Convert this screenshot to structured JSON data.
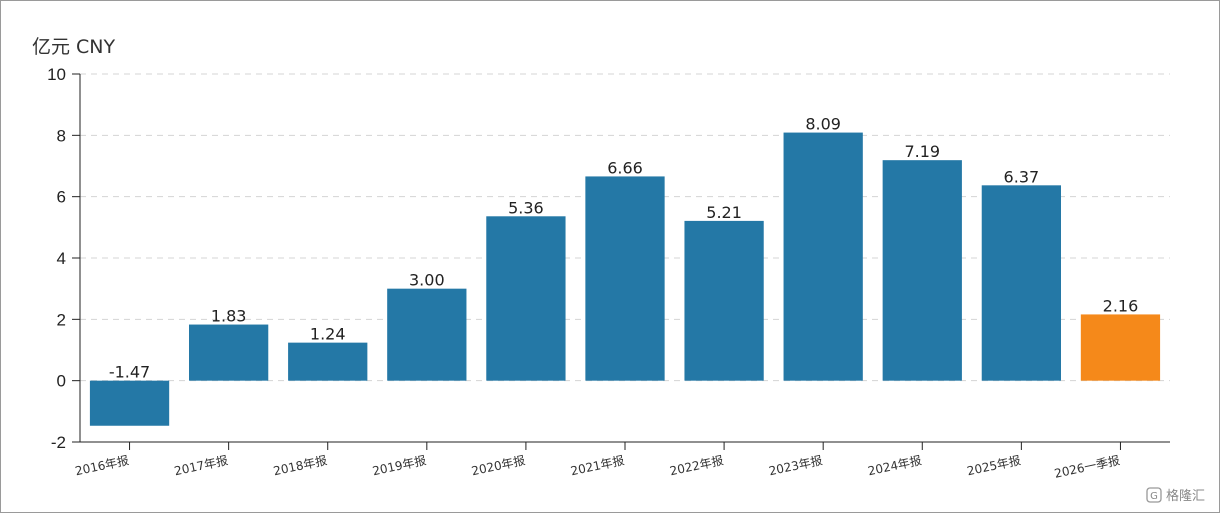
{
  "chart_data": {
    "type": "bar",
    "unit_label": "亿元  CNY",
    "categories": [
      "2016年报",
      "2017年报",
      "2018年报",
      "2019年报",
      "2020年报",
      "2021年报",
      "2022年报",
      "2023年报",
      "2024年报",
      "2025年报",
      "2026一季报"
    ],
    "values": [
      -1.47,
      1.83,
      1.24,
      3.0,
      5.36,
      6.66,
      5.21,
      8.09,
      7.19,
      6.37,
      2.16
    ],
    "data_labels": [
      "-1.47",
      "1.83",
      "1.24",
      "3.00",
      "5.36",
      "6.66",
      "5.21",
      "8.09",
      "7.19",
      "6.37",
      "2.16"
    ],
    "ylim": [
      -2,
      10
    ],
    "yticks": [
      -2,
      0,
      2,
      4,
      6,
      8,
      10
    ],
    "ytick_labels": [
      "-2",
      "0",
      "2",
      "4",
      "6",
      "8",
      "10"
    ],
    "grid": true,
    "colors": {
      "default": "#2478a6",
      "highlight": "#f5891a",
      "highlight_index": 10
    }
  },
  "watermark": {
    "text": "格隆汇",
    "icon": "g-logo-icon"
  }
}
